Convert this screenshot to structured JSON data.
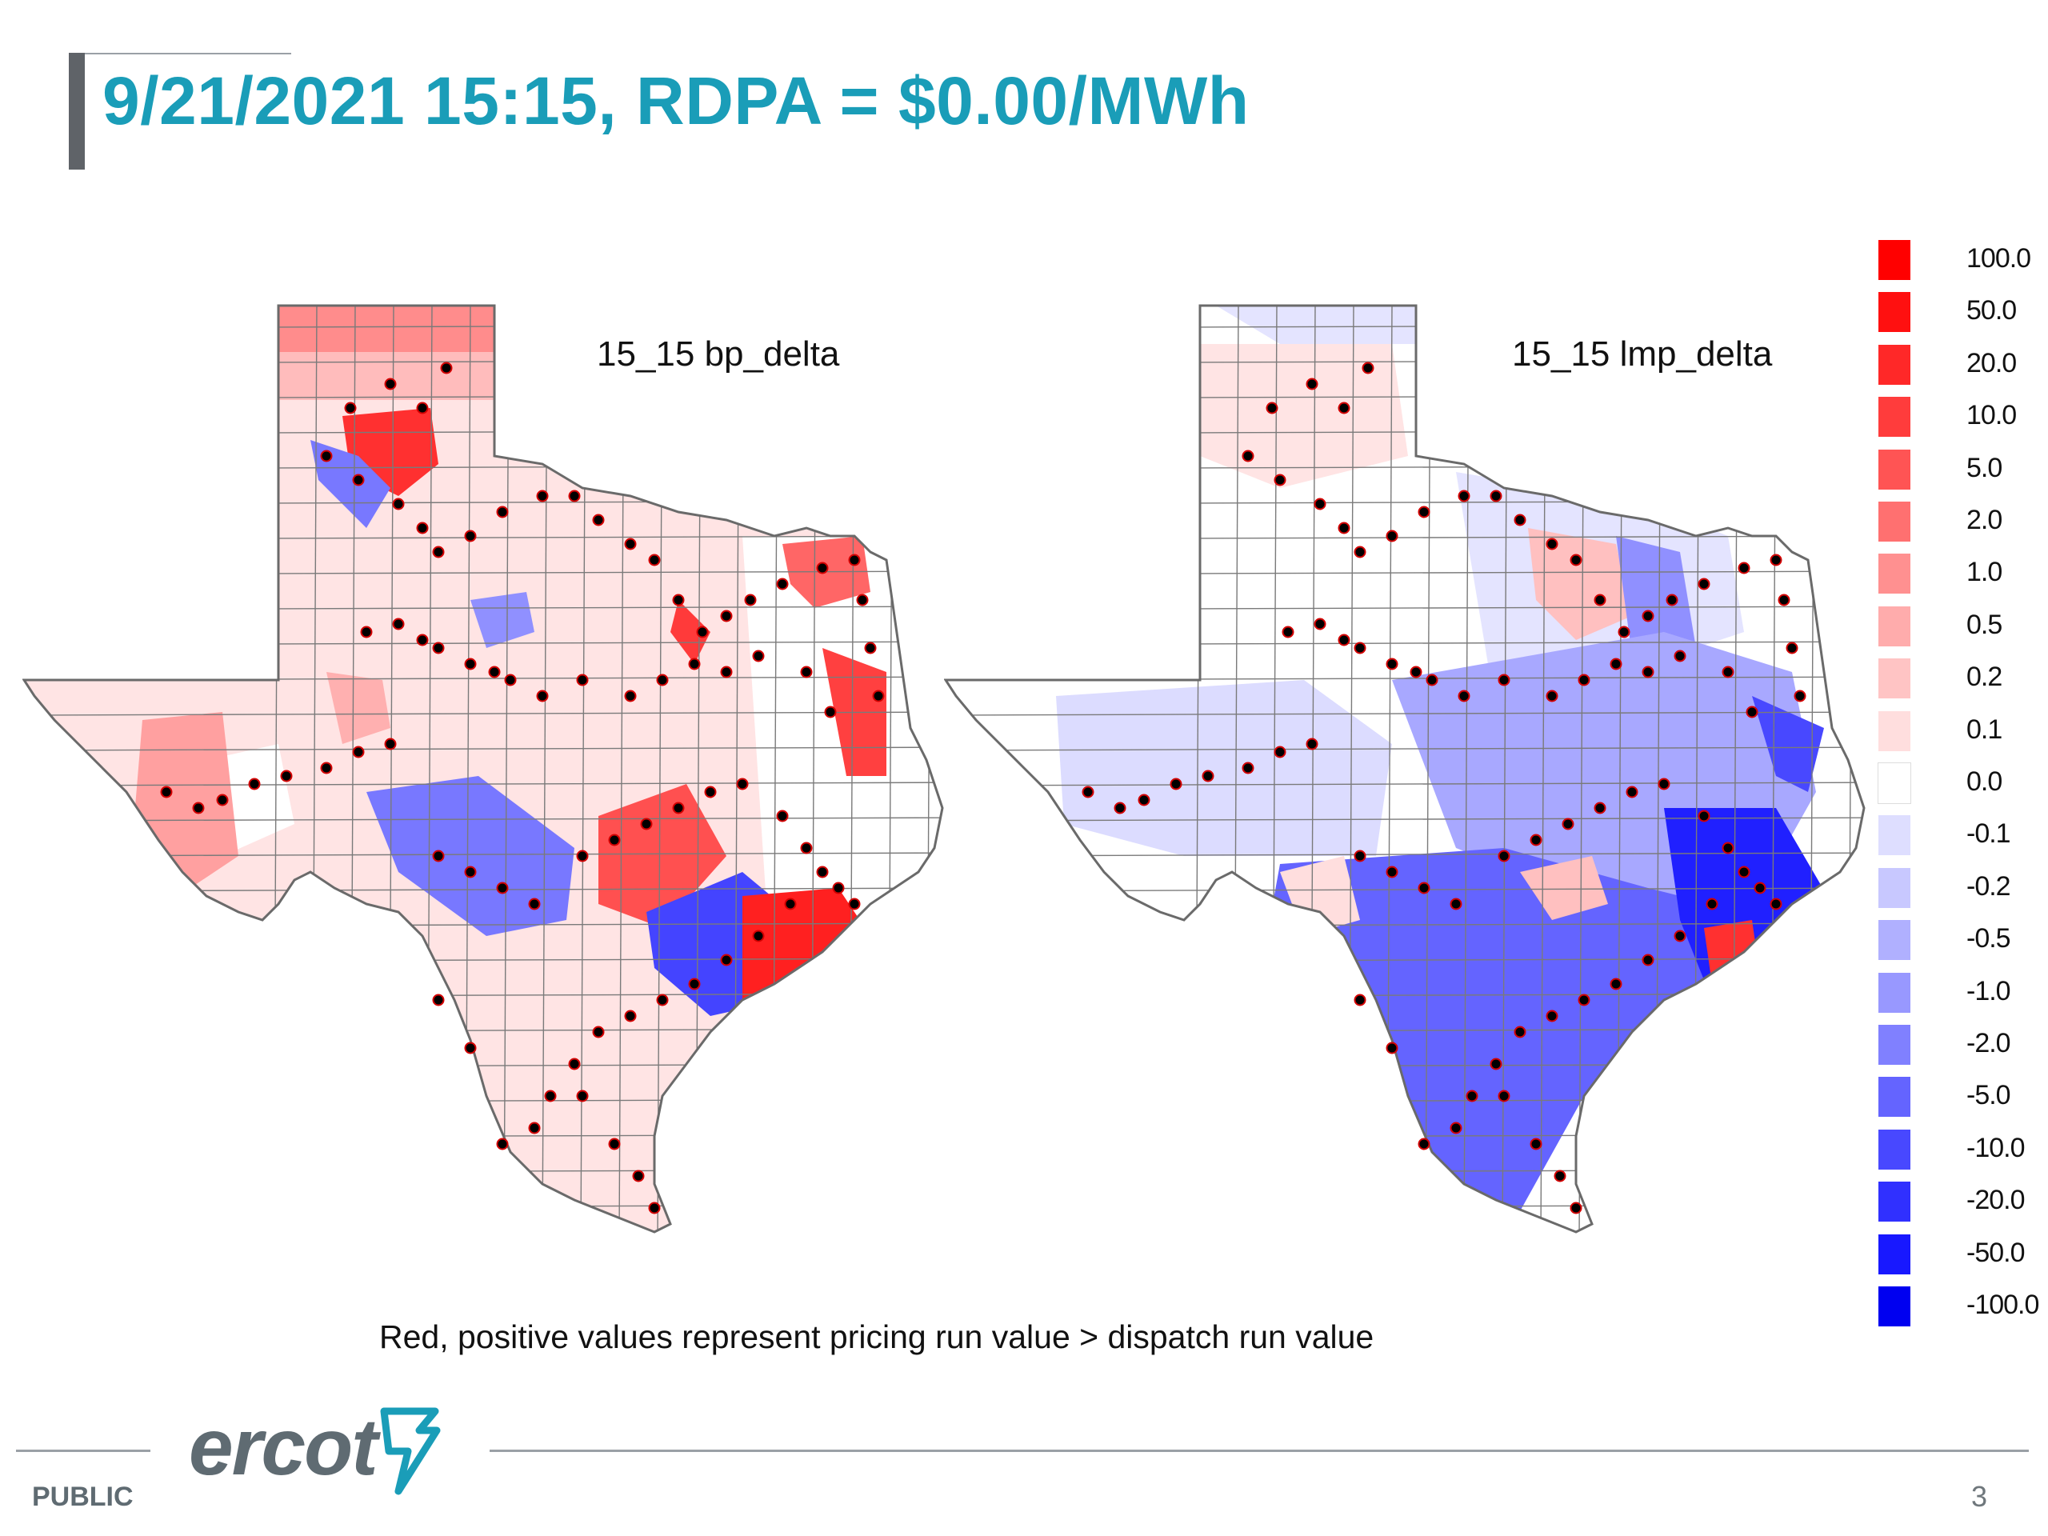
{
  "slide": {
    "title": "9/21/2021 15:15, RDPA = $0.00/MWh",
    "footnote": "Red, positive values represent pricing run value > dispatch run value",
    "classification": "PUBLIC",
    "page_number": "3",
    "logo_text": "ercot"
  },
  "maps": {
    "left": {
      "label": "15_15 bp_delta"
    },
    "right": {
      "label": "15_15 lmp_delta"
    }
  },
  "legend": {
    "items": [
      {
        "label": "100.0",
        "color": "#ff0000"
      },
      {
        "label": "50.0",
        "color": "#ff1010"
      },
      {
        "label": "20.0",
        "color": "#ff2828"
      },
      {
        "label": "10.0",
        "color": "#ff3c3c"
      },
      {
        "label": "5.0",
        "color": "#ff5454"
      },
      {
        "label": "2.0",
        "color": "#ff7070"
      },
      {
        "label": "1.0",
        "color": "#ff9090"
      },
      {
        "label": "0.5",
        "color": "#ffacac"
      },
      {
        "label": "0.2",
        "color": "#ffc4c4"
      },
      {
        "label": "0.1",
        "color": "#ffdede"
      },
      {
        "label": "0.0",
        "color": "#ffffff"
      },
      {
        "label": "-0.1",
        "color": "#dedeff"
      },
      {
        "label": "-0.2",
        "color": "#c8c8ff"
      },
      {
        "label": "-0.5",
        "color": "#b0b0ff"
      },
      {
        "label": "-1.0",
        "color": "#9898ff"
      },
      {
        "label": "-2.0",
        "color": "#8080ff"
      },
      {
        "label": "-5.0",
        "color": "#6464ff"
      },
      {
        "label": "-10.0",
        "color": "#4848ff"
      },
      {
        "label": "-20.0",
        "color": "#3030ff"
      },
      {
        "label": "-50.0",
        "color": "#1818ff"
      },
      {
        "label": "-100.0",
        "color": "#0000f0"
      }
    ]
  },
  "colors": {
    "title": "#1a9db8",
    "rule": "#9aa0a6",
    "logo": "#5f6b72",
    "logo_accent": "#1a9db8",
    "marker": "#000000",
    "marker_edge": "#d40000",
    "county_line": "#6a6a6a"
  }
}
